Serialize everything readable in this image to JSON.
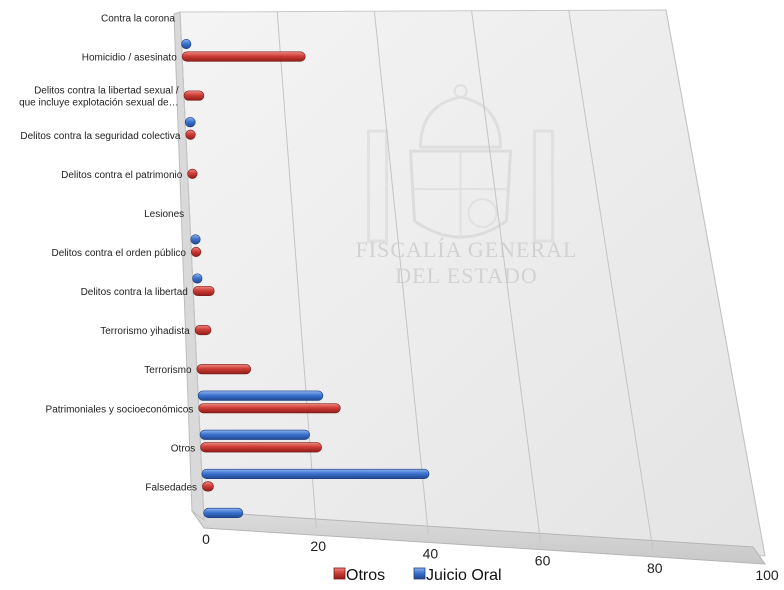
{
  "chart_data": {
    "type": "bar",
    "orientation": "horizontal",
    "style": "3d-perspective",
    "categories": [
      "Contra la corona",
      "Homicidio / asesinato",
      "Delitos contra la libertad sexual / que incluye explotación sexual de…",
      "Delitos contra la seguridad colectiva",
      "Delitos contra el patrimonio",
      "Lesiones",
      "Delitos contra el orden público",
      "Delitos contra la libertad",
      "Terrorismo yihadista",
      "Terrorismo",
      "Patrimoniales y socioeconómicos",
      "Otros",
      "Falsedades"
    ],
    "series": [
      {
        "name": "Otros",
        "color": "#c0392b",
        "values": [
          0,
          25,
          4,
          1,
          0.5,
          0,
          1,
          4,
          3,
          10,
          26,
          22,
          2
        ]
      },
      {
        "name": "Juicio Oral",
        "color": "#3a6fc0",
        "values": [
          0.5,
          0,
          2,
          0,
          0,
          1,
          1,
          0,
          0,
          23,
          20,
          41,
          7
        ]
      }
    ],
    "xlim": [
      0,
      100
    ],
    "x_ticks": [
      "0",
      "20",
      "40",
      "60",
      "80",
      "100"
    ],
    "grid": true,
    "legend": "bottom",
    "watermark": {
      "lines": [
        "FISCALÍA GENERAL",
        "DEL ESTADO"
      ]
    }
  }
}
